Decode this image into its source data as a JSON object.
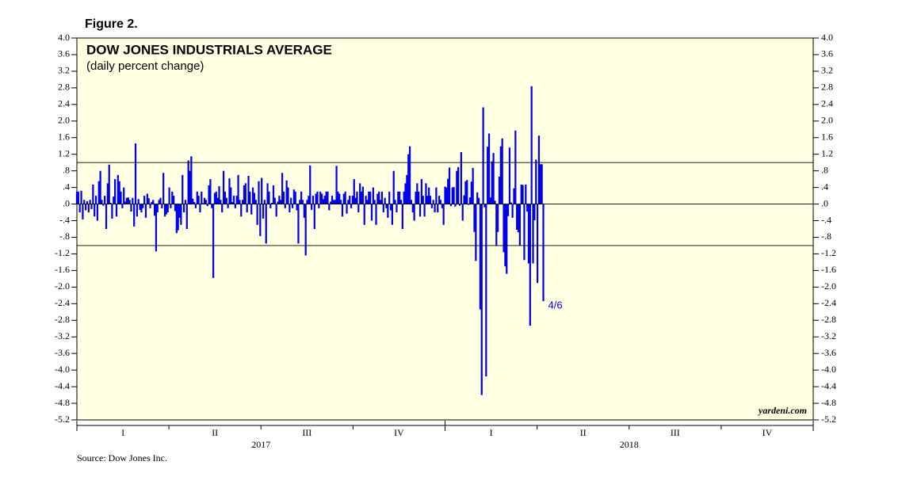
{
  "chart_data": {
    "type": "bar",
    "figure_label": "Figure 2.",
    "title": "DOW JONES INDUSTRIALS AVERAGE",
    "subtitle": "(daily percent change)",
    "source": "Source: Dow Jones Inc.",
    "watermark": "yardeni.com",
    "annotation": "4/6",
    "color": "#0000ee",
    "ylim": [
      -5.2,
      4.0
    ],
    "yticks": [
      {
        "value": 4.0,
        "label": "4.0"
      },
      {
        "value": 3.6,
        "label": "3.6"
      },
      {
        "value": 3.2,
        "label": "3.2"
      },
      {
        "value": 2.8,
        "label": "2.8"
      },
      {
        "value": 2.4,
        "label": "2.4"
      },
      {
        "value": 2.0,
        "label": "2.0"
      },
      {
        "value": 1.6,
        "label": "1.6"
      },
      {
        "value": 1.2,
        "label": "1.2"
      },
      {
        "value": 0.8,
        "label": ".8"
      },
      {
        "value": 0.4,
        "label": ".4"
      },
      {
        "value": 0,
        "label": ".0"
      },
      {
        "value": -0.4,
        "label": "-.4"
      },
      {
        "value": -0.8,
        "label": "-.8"
      },
      {
        "value": -1.2,
        "label": "-1.2"
      },
      {
        "value": -1.6,
        "label": "-1.6"
      },
      {
        "value": -2.0,
        "label": "-2.0"
      },
      {
        "value": -2.4,
        "label": "-2.4"
      },
      {
        "value": -2.8,
        "label": "-2.8"
      },
      {
        "value": -3.2,
        "label": "-3.2"
      },
      {
        "value": -3.6,
        "label": "-3.6"
      },
      {
        "value": -4.0,
        "label": "-4.0"
      },
      {
        "value": -4.4,
        "label": "-4.4"
      },
      {
        "value": -4.8,
        "label": "-4.8"
      },
      {
        "value": -5.2,
        "label": "-5.2"
      }
    ],
    "reference_lines": [
      1,
      0,
      -1
    ],
    "xlim": [
      2017,
      2019
    ],
    "xticks": [
      2017,
      2017.25,
      2017.5,
      2017.75,
      2018,
      2018.25,
      2018.5,
      2018.75,
      2019
    ],
    "quarters": [
      "I",
      "II",
      "III",
      "IV",
      "I",
      "II",
      "III",
      "IV"
    ],
    "years": [
      "2017",
      "2018"
    ],
    "values": [
      0.3,
      0.3,
      -0.2,
      0.32,
      -0.37,
      0.1,
      -0.15,
      0.07,
      -0.2,
      0.1,
      -0.12,
      0.47,
      -0.3,
      0.2,
      -0.4,
      0.55,
      0.8,
      0.1,
      -0.04,
      0.2,
      -0.6,
      0.5,
      0.95,
      0.03,
      -0.35,
      0.18,
      0.6,
      -0.3,
      0.7,
      0.55,
      0.3,
      -0.1,
      0.4,
      0.06,
      0.15,
      0.16,
      0.1,
      -0.18,
      0.15,
      -0.54,
      1.46,
      -0.3,
      0.12,
      -0.14,
      -0.2,
      -0.1,
      0.2,
      -0.33,
      0.25,
      0.14,
      -0.1,
      0.05,
      0.1,
      -0.28,
      -1.14,
      -0.2,
      0.1,
      0.15,
      -0.1,
      0.75,
      -0.3,
      -0.25,
      -0.2,
      0.4,
      -0.1,
      0.3,
      0.2,
      -0.17,
      -0.7,
      -0.63,
      -0.33,
      -0.5,
      0.7,
      -0.2,
      0.1,
      -0.6,
      1.05,
      0.8,
      1.15,
      0.13,
      0.05,
      -0.1,
      0.3,
      0.2,
      -0.2,
      0.3,
      0.02,
      0.15,
      0.1,
      -0.05,
      0.45,
      0.6,
      -0.1,
      -1.78,
      0.27,
      0.3,
      0.15,
      0.43,
      0.1,
      -0.2,
      0.8,
      0.3,
      0.15,
      -0.1,
      0.62,
      0.4,
      0.05,
      0.2,
      -0.1,
      0.2,
      0.7,
      0.1,
      -0.3,
      0.1,
      0.45,
      0.5,
      -0.2,
      0.68,
      0.3,
      -0.25,
      0.4,
      0.27,
      0.1,
      -0.5,
      0.55,
      -0.77,
      0.63,
      -0.35,
      0.1,
      -0.95,
      0.5,
      0.3,
      -0.1,
      0.03,
      0.45,
      0.15,
      -0.3,
      0.06,
      0.2,
      0.1,
      0.75,
      0.3,
      -0.1,
      0.57,
      0.4,
      -0.2,
      0.15,
      -0.1,
      0.35,
      0.3,
      -0.15,
      -0.95,
      0.1,
      0.3,
      0.1,
      -0.33,
      -1.24,
      0.1,
      0.2,
      0.93,
      -0.14,
      0.2,
      -0.6,
      0.25,
      0.3,
      -0.1,
      0.3,
      0.25,
      0.12,
      0.2,
      0.3,
      0.3,
      -0.15,
      0.06,
      0.2,
      0.1,
      0.1,
      0.92,
      0.3,
      0.25,
      0.1,
      -0.3,
      0.25,
      0.3,
      -0.23,
      0.1,
      0.2,
      -0.1,
      0.2,
      0.6,
      0.15,
      0.3,
      -0.2,
      0.5,
      0.3,
      0.42,
      -0.5,
      0.2,
      0.1,
      0.3,
      0.3,
      -0.4,
      0.4,
      0.1,
      -0.5,
      0.25,
      0.3,
      0.1,
      0.3,
      -0.2,
      0.15,
      -0.1,
      -0.33,
      0.3,
      -0.15,
      -0.5,
      0.8,
      0.1,
      -0.2,
      0.3,
      0.3,
      0.1,
      -0.6,
      0.3,
      0.5,
      0.7,
      1.2,
      1.39,
      0.1,
      -0.2,
      -0.4,
      0.3,
      0.5,
      0.3,
      -0.3,
      0.6,
      0.2,
      -0.3,
      0.5,
      0.2,
      0.4,
      0.2,
      -0.1,
      0.1,
      -0.2,
      0.4,
      -0.2,
      0.2,
      0.1,
      -0.1,
      -0.5,
      0.42,
      0.4,
      0.61,
      0.88,
      -0.05,
      0.4,
      0.41,
      -0.06,
      0.8,
      0.89,
      -0.04,
      1.25,
      -0.4,
      0.21,
      0.55,
      0.58,
      -0.02,
      0.16,
      0.54,
      0.87,
      -0.67,
      -1.37,
      0.28,
      0.15,
      -2.54,
      -4.6,
      2.33,
      -0.08,
      -4.15,
      1.38,
      1.7,
      0.16,
      1.03,
      1.23,
      0.08,
      -1.01,
      -0.67,
      0.66,
      1.39,
      1.58,
      -1.16,
      -1.5,
      -1.68,
      -0.29,
      1.36,
      0.04,
      -0.33,
      0.38,
      1.77,
      -0.62,
      -0.68,
      -1.0,
      0.47,
      0.46,
      -1.35,
      0.47,
      -0.18,
      -1.43,
      -2.93,
      2.84,
      -1.43,
      -0.39,
      1.07,
      -1.9,
      1.65,
      0.96,
      0.96,
      -2.34
    ]
  }
}
